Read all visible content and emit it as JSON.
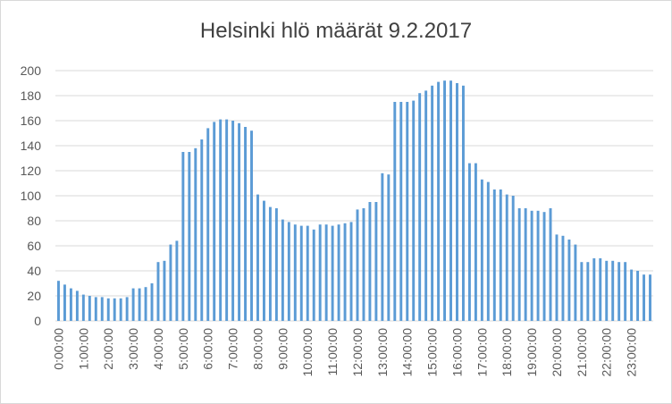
{
  "chart_data": {
    "type": "bar",
    "title": "Helsinki hlö määrät 9.2.2017",
    "xlabel": "",
    "ylabel": "",
    "ylim": [
      0,
      200
    ],
    "yticks": [
      0,
      20,
      40,
      60,
      80,
      100,
      120,
      140,
      160,
      180,
      200
    ],
    "grid": true,
    "legend": "none",
    "bar_color": "#5b9bd5",
    "x_tick_labels": [
      "0:00:00",
      "1:00:00",
      "2:00:00",
      "3:00:00",
      "4:00:00",
      "5:00:00",
      "6:00:00",
      "7:00:00",
      "8:00:00",
      "9:00:00",
      "10:00:00",
      "11:00:00",
      "12:00:00",
      "13:00:00",
      "14:00:00",
      "15:00:00",
      "16:00:00",
      "17:00:00",
      "18:00:00",
      "19:00:00",
      "20:00:00",
      "21:00:00",
      "22:00:00",
      "23:00:00"
    ],
    "categories": [
      "0:00",
      "0:15",
      "0:30",
      "0:45",
      "1:00",
      "1:15",
      "1:30",
      "1:45",
      "2:00",
      "2:15",
      "2:30",
      "2:45",
      "3:00",
      "3:15",
      "3:30",
      "3:45",
      "4:00",
      "4:15",
      "4:30",
      "4:45",
      "5:00",
      "5:15",
      "5:30",
      "5:45",
      "6:00",
      "6:15",
      "6:30",
      "6:45",
      "7:00",
      "7:15",
      "7:30",
      "7:45",
      "8:00",
      "8:15",
      "8:30",
      "8:45",
      "9:00",
      "9:15",
      "9:30",
      "9:45",
      "10:00",
      "10:15",
      "10:30",
      "10:45",
      "11:00",
      "11:15",
      "11:30",
      "11:45",
      "12:00",
      "12:15",
      "12:30",
      "12:45",
      "13:00",
      "13:15",
      "13:30",
      "13:45",
      "14:00",
      "14:15",
      "14:30",
      "14:45",
      "15:00",
      "15:15",
      "15:30",
      "15:45",
      "16:00",
      "16:15",
      "16:30",
      "16:45",
      "17:00",
      "17:15",
      "17:30",
      "17:45",
      "18:00",
      "18:15",
      "18:30",
      "18:45",
      "19:00",
      "19:15",
      "19:30",
      "19:45",
      "20:00",
      "20:15",
      "20:30",
      "20:45",
      "21:00",
      "21:15",
      "21:30",
      "21:45",
      "22:00",
      "22:15",
      "22:30",
      "22:45",
      "23:00",
      "23:15",
      "23:30",
      "23:45"
    ],
    "values": [
      32,
      29,
      26,
      24,
      21,
      20,
      19,
      19,
      18,
      18,
      18,
      19,
      26,
      26,
      27,
      30,
      47,
      48,
      61,
      64,
      135,
      135,
      138,
      145,
      154,
      159,
      161,
      161,
      160,
      158,
      155,
      152,
      101,
      96,
      91,
      90,
      81,
      79,
      77,
      76,
      76,
      73,
      77,
      77,
      76,
      77,
      78,
      79,
      89,
      90,
      95,
      95,
      118,
      117,
      175,
      175,
      175,
      176,
      182,
      184,
      188,
      191,
      192,
      192,
      190,
      188,
      126,
      126,
      113,
      111,
      105,
      105,
      101,
      100,
      90,
      90,
      88,
      88,
      87,
      90,
      69,
      68,
      65,
      61,
      47,
      47,
      50,
      50,
      48,
      48,
      47,
      47,
      41,
      40,
      37,
      37
    ]
  }
}
